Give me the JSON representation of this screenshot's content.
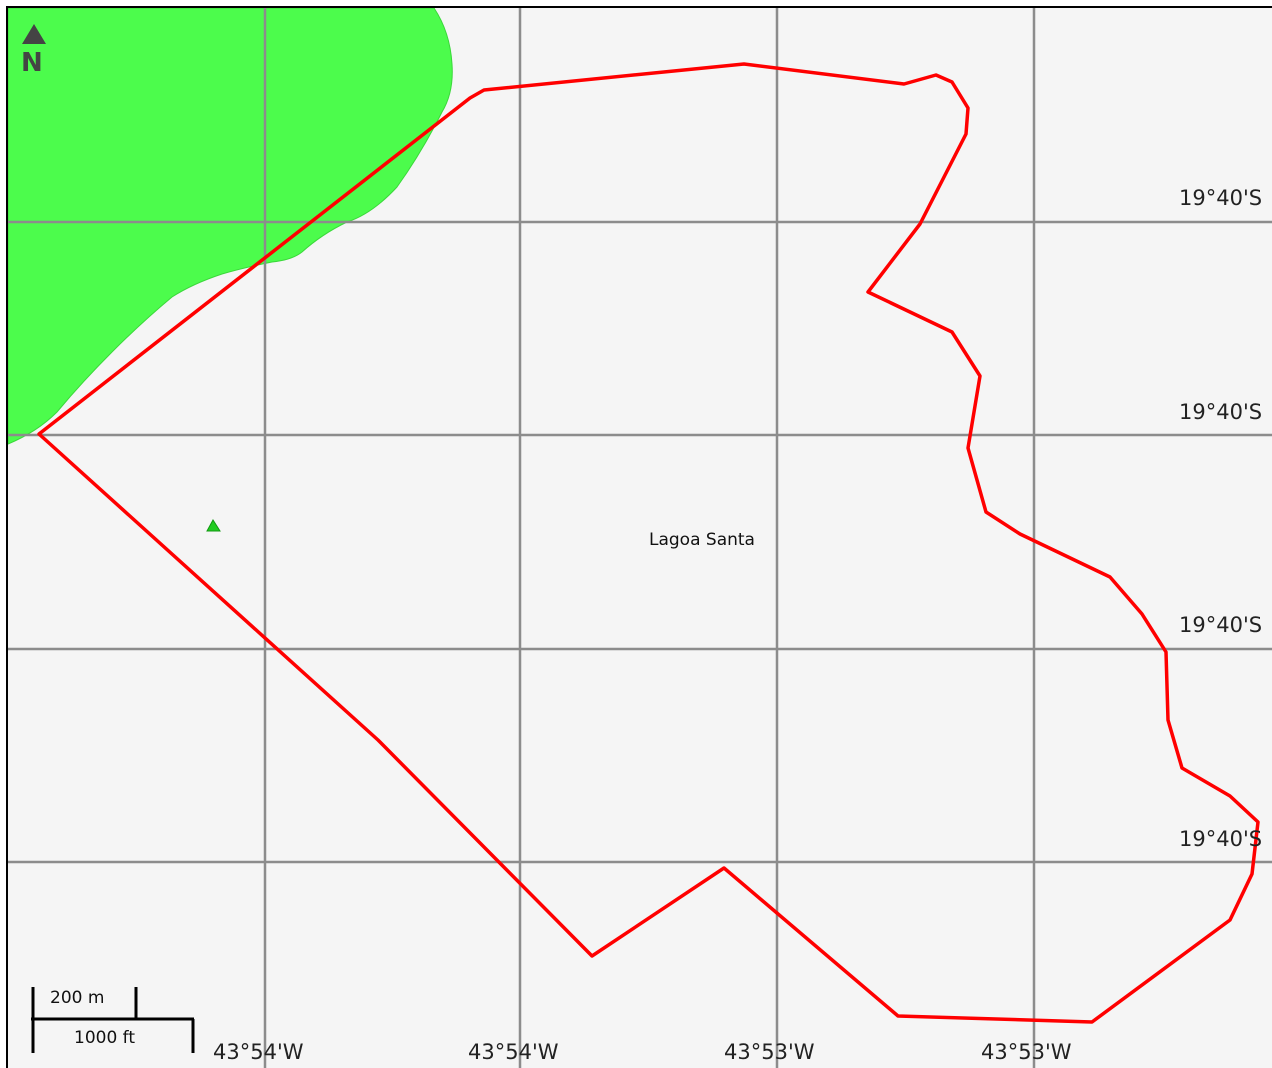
{
  "map": {
    "place_label": "Lagoa Santa",
    "north_label": "N",
    "latitude_labels": [
      "19°40'S",
      "19°40'S",
      "19°40'S",
      "19°40'S"
    ],
    "longitude_labels": [
      "43°54'W",
      "43°54'W",
      "43°53'W",
      "43°53'W"
    ],
    "scale_bar": {
      "metric_label": "200 m",
      "imperial_label": "1000 ft"
    },
    "colors": {
      "background": "#f5f5f5",
      "grid": "#8c8c8c",
      "boundary": "#ff0000",
      "park_fill": "#4cfc4c",
      "marker": "#22cc22"
    },
    "icons": [
      "north-arrow-icon",
      "peak-marker-icon"
    ]
  }
}
